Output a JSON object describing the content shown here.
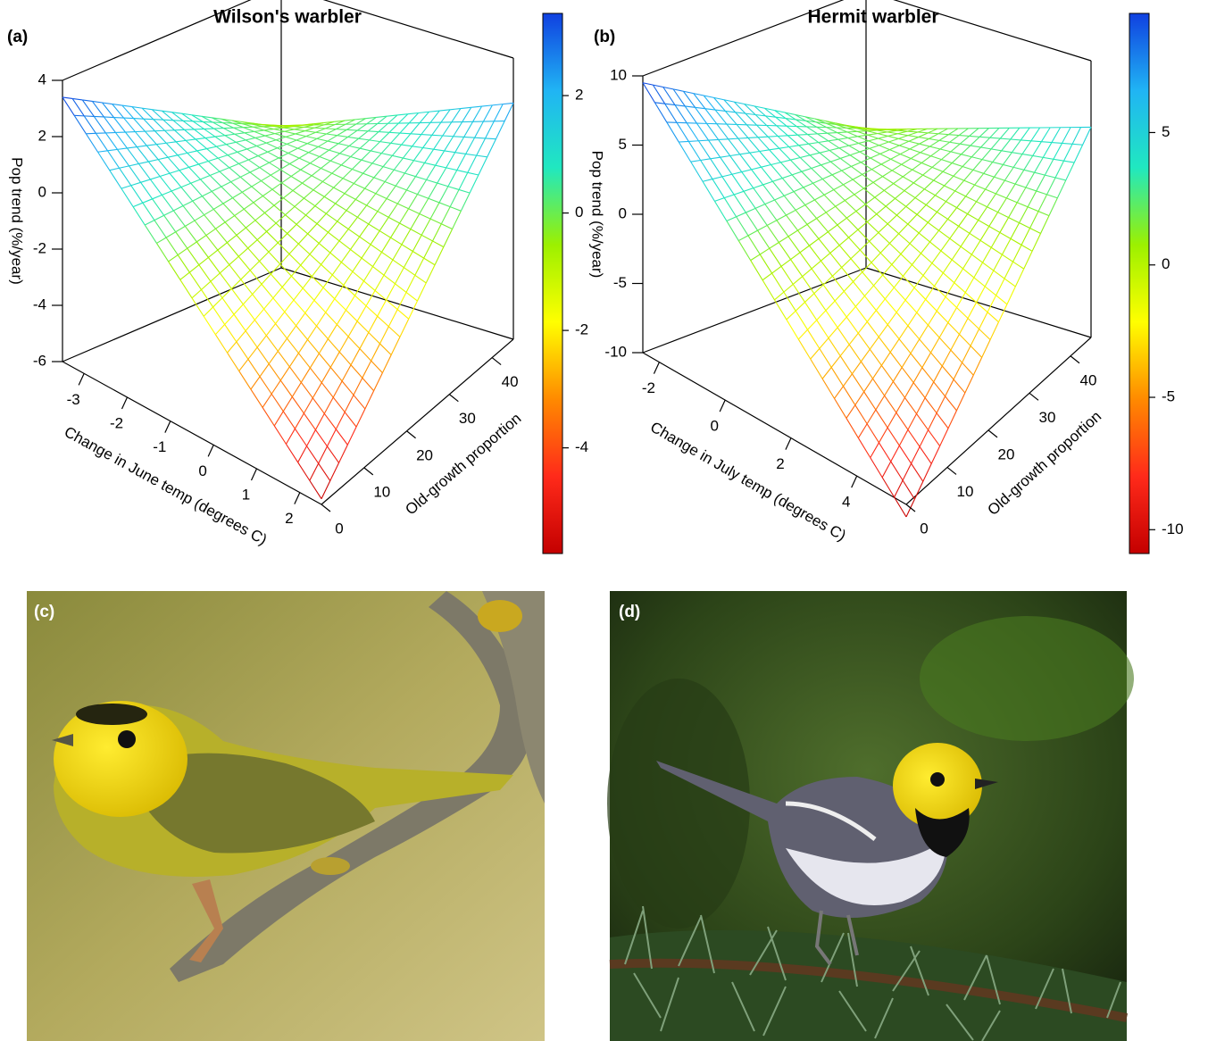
{
  "chart_data": [
    {
      "type": "surface3d",
      "panel": "(a)",
      "title": "Wilson's warbler",
      "xlabel": "Change in June temp (degrees C)",
      "ylabel": "Old-growth proportion",
      "zlabel": "Pop trend (%/year)",
      "xlim": [
        -3.5,
        2.5
      ],
      "xticks": [
        -3,
        -2,
        -1,
        0,
        1,
        2
      ],
      "ylim": [
        0,
        45
      ],
      "yticks": [
        0,
        10,
        20,
        30,
        40
      ],
      "zlim": [
        -6,
        4
      ],
      "zticks": [
        -6,
        -4,
        -2,
        0,
        2,
        4
      ],
      "z": [
        [
          3.4,
          -1
        ],
        [
          -5.8,
          2.4
        ]
      ],
      "colorbar": {
        "lim": [
          -5.8,
          3.4
        ],
        "ticks": [
          -4,
          -2,
          0,
          2
        ]
      },
      "colors": [
        "#c40000",
        "#ff2a1a",
        "#ff8a00",
        "#ffff00",
        "#9cf000",
        "#20e8c0",
        "#20b4f4",
        "#1040e0"
      ]
    },
    {
      "type": "surface3d",
      "panel": "(b)",
      "title": "Hermit warbler",
      "xlabel": "Change in July temp (degrees C)",
      "ylabel": "Old-growth proportion",
      "zlabel": "Pop trend (%/year)",
      "xlim": [
        -2.5,
        5.5
      ],
      "xticks": [
        -2,
        0,
        2,
        4
      ],
      "ylim": [
        0,
        45
      ],
      "yticks": [
        0,
        10,
        20,
        30,
        40
      ],
      "zlim": [
        -10,
        10
      ],
      "zticks": [
        -10,
        -5,
        0,
        5,
        10
      ],
      "z": [
        [
          9.5,
          0
        ],
        [
          -10.9,
          5.2
        ]
      ],
      "colorbar": {
        "lim": [
          -10.9,
          9.5
        ],
        "ticks": [
          -10,
          -5,
          0,
          5
        ]
      },
      "colors": [
        "#c40000",
        "#ff2a1a",
        "#ff8a00",
        "#ffff00",
        "#9cf000",
        "#20e8c0",
        "#20b4f4",
        "#1040e0"
      ]
    }
  ],
  "photos": [
    {
      "label": "(c)"
    },
    {
      "label": "(d)"
    }
  ]
}
